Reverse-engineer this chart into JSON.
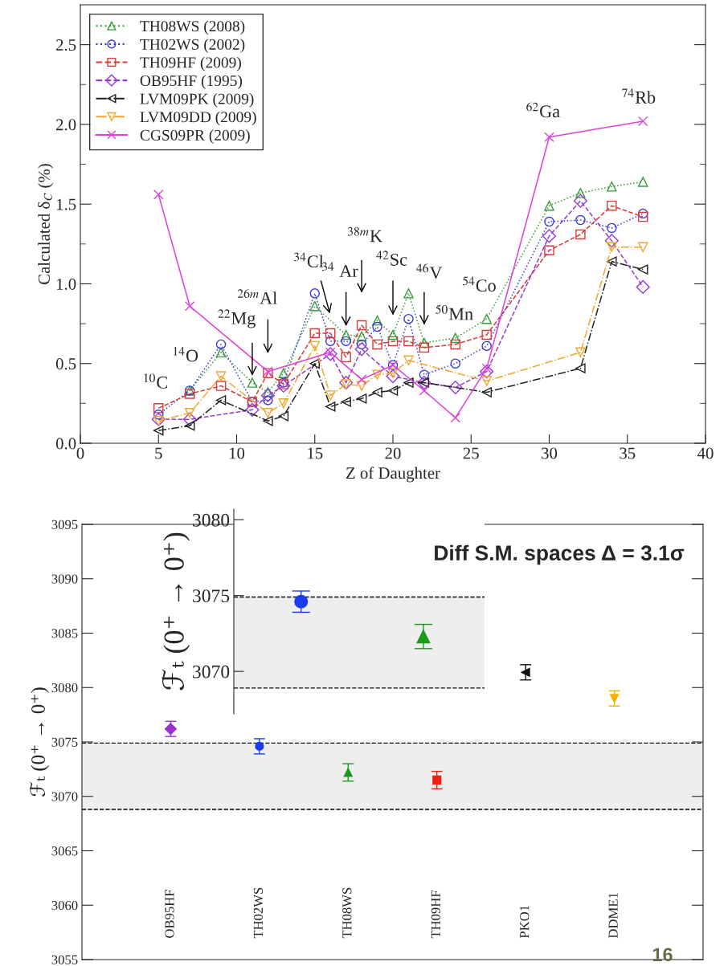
{
  "chart_data": [
    {
      "type": "line",
      "xlabel": "Z of Daughter",
      "ylabel": "Calculated δ$_{C}$ (%)",
      "xlim": [
        0,
        40
      ],
      "xticks": [
        0,
        5,
        10,
        15,
        20,
        25,
        30,
        35,
        40
      ],
      "ylim": [
        0,
        2.75
      ],
      "yticks": [
        {
          "value": 0,
          "label": "0.0"
        },
        {
          "value": 0.25,
          "label": null
        },
        {
          "value": 0.5,
          "label": "0.5"
        },
        {
          "value": 0.75,
          "label": null
        },
        {
          "value": 1.0,
          "label": "1.0"
        },
        {
          "value": 1.25,
          "label": null
        },
        {
          "value": 1.5,
          "label": "1.5"
        },
        {
          "value": 1.75,
          "label": null
        },
        {
          "value": 2.0,
          "label": "2.0"
        },
        {
          "value": 2.25,
          "label": null
        },
        {
          "value": 2.5,
          "label": "2.5"
        }
      ],
      "legend": "top left",
      "grid": false,
      "series": [
        {
          "name": "TH08WS (2008)",
          "color": "#3c9a3c",
          "marker": "triangle",
          "line_style": "dotted",
          "x": [
            7,
            9,
            11,
            12,
            13,
            15,
            17,
            18,
            19,
            20,
            21,
            22,
            24,
            26,
            30,
            32,
            34,
            36
          ],
          "values": [
            0.33,
            0.57,
            0.38,
            0.32,
            0.44,
            0.86,
            0.68,
            0.67,
            0.77,
            0.68,
            0.94,
            0.63,
            0.66,
            0.78,
            1.49,
            1.57,
            1.61,
            1.64
          ]
        },
        {
          "name": "TH02WS (2002)",
          "color": "#3a3ad8",
          "marker": "circle",
          "line_style": "dotted",
          "x": [
            5,
            7,
            9,
            11,
            12,
            13,
            15,
            16,
            17,
            18,
            19,
            20,
            21,
            22,
            24,
            26,
            30,
            32,
            34,
            36
          ],
          "values": [
            0.18,
            0.33,
            0.62,
            0.26,
            0.27,
            0.38,
            0.94,
            0.64,
            0.64,
            0.62,
            0.73,
            0.49,
            0.78,
            0.43,
            0.5,
            0.61,
            1.39,
            1.4,
            1.35,
            1.44
          ]
        },
        {
          "name": "TH09HF (2009)",
          "color": "#d83a3a",
          "marker": "square",
          "line_style": "dashed",
          "x": [
            5,
            7,
            9,
            11,
            12,
            13,
            15,
            16,
            17,
            18,
            19,
            20,
            21,
            22,
            24,
            26,
            30,
            32,
            34,
            36
          ],
          "values": [
            0.22,
            0.31,
            0.36,
            0.26,
            0.44,
            0.37,
            0.69,
            0.69,
            0.54,
            0.74,
            0.62,
            0.64,
            0.64,
            0.6,
            0.62,
            0.68,
            1.21,
            1.31,
            1.49,
            1.42
          ]
        },
        {
          "name": "OB95HF (1995)",
          "color": "#9a3ad0",
          "marker": "diamond",
          "line_style": "dashed",
          "x": [
            5,
            7,
            11,
            12,
            13,
            16,
            17,
            18,
            20,
            22,
            24,
            26,
            30,
            32,
            34,
            36
          ],
          "values": [
            0.15,
            0.15,
            0.21,
            0.3,
            0.36,
            0.56,
            0.38,
            0.59,
            0.42,
            0.38,
            0.35,
            0.45,
            1.3,
            1.52,
            1.27,
            0.98
          ]
        },
        {
          "name": "LVM09PK (2009)",
          "color": "#222222",
          "marker": "triangle-left",
          "line_style": "dashdot",
          "x": [
            5,
            7,
            9,
            12,
            13,
            15,
            16,
            17,
            18,
            19,
            20,
            21,
            22,
            26,
            32,
            34,
            36
          ],
          "values": [
            0.08,
            0.11,
            0.27,
            0.14,
            0.17,
            0.5,
            0.23,
            0.26,
            0.28,
            0.32,
            0.33,
            0.38,
            0.38,
            0.32,
            0.47,
            1.14,
            1.09
          ]
        },
        {
          "name": "LVM09DD (2009)",
          "color": "#f0a830",
          "marker": "triangle-down",
          "line_style": "dashdot",
          "x": [
            5,
            7,
            9,
            12,
            13,
            15,
            16,
            17,
            18,
            19,
            20,
            21,
            26,
            32,
            34,
            36
          ],
          "values": [
            0.14,
            0.19,
            0.42,
            0.19,
            0.25,
            0.61,
            0.3,
            0.37,
            0.36,
            0.43,
            0.44,
            0.52,
            0.39,
            0.57,
            1.23,
            1.23
          ]
        },
        {
          "name": "CGS09PR (2009)",
          "color": "#e040d8",
          "marker": "cross",
          "line_style": "solid",
          "x": [
            5,
            7,
            12,
            16,
            18,
            20,
            22,
            24,
            26,
            30,
            36
          ],
          "values": [
            1.56,
            0.86,
            0.45,
            0.57,
            0.4,
            0.49,
            0.33,
            0.16,
            0.47,
            1.92,
            2.02
          ]
        }
      ],
      "annotations": [
        "$^{10}$C",
        "$^{14}$O",
        "$^{22}$Mg",
        "$^{26m}$Al",
        "$^{34}$Cl",
        "$^{34}$ Ar",
        "$^{38m}$K",
        "$^{42}$Sc",
        "$^{46}$V",
        "$^{50}$Mn",
        "$^{54}$Co",
        "$^{62}$Ga",
        "$^{74}$Rb"
      ]
    },
    {
      "type": "scatter",
      "ylabel": "ℱₜ (0⁺ → 0⁺)",
      "categories": [
        "OB95HF",
        "TH02WS",
        "TH08WS",
        "TH09HF",
        "PKO1",
        "DDME1"
      ],
      "ylim": [
        3055,
        3095
      ],
      "yticks": [
        3055,
        3060,
        3065,
        3070,
        3075,
        3080,
        3085,
        3090,
        3095
      ],
      "grid": false,
      "bands": [
        {
          "axis": "y",
          "from": 3068.8,
          "to": 3074.9,
          "color": "#eeeeee"
        }
      ],
      "ref_lines": [
        {
          "axis": "y",
          "value": 3074.9,
          "line_style": "dashed"
        },
        {
          "axis": "y",
          "value": 3068.8,
          "line_style": "dashed"
        }
      ],
      "series": [
        {
          "color": "#9a30d0",
          "marker": "diamond",
          "values": [
            3076.2,
            null,
            null,
            null,
            null,
            null
          ],
          "errors": [
            0.7,
            null,
            null,
            null,
            null,
            null
          ]
        },
        {
          "color": "#1a3cf0",
          "marker": "circle",
          "values": [
            null,
            3074.6,
            null,
            null,
            null,
            null
          ],
          "errors": [
            null,
            0.7,
            null,
            null,
            null,
            null
          ]
        },
        {
          "color": "#1a9a1a",
          "marker": "triangle",
          "values": [
            null,
            null,
            3072.2,
            null,
            null,
            null
          ],
          "errors": [
            null,
            null,
            0.8,
            null,
            null,
            null
          ]
        },
        {
          "color": "#f02010",
          "marker": "square",
          "values": [
            null,
            null,
            null,
            3071.5,
            null,
            null
          ],
          "errors": [
            null,
            null,
            null,
            0.8,
            null,
            null
          ]
        },
        {
          "color": "#111111",
          "marker": "triangle-left",
          "values": [
            null,
            null,
            null,
            null,
            3081.4,
            null
          ],
          "errors": [
            null,
            null,
            null,
            null,
            0.7,
            null
          ]
        },
        {
          "color": "#f5b000",
          "marker": "triangle-down",
          "values": [
            null,
            null,
            null,
            null,
            null,
            3079.0
          ],
          "errors": [
            null,
            null,
            null,
            null,
            null,
            0.7
          ]
        }
      ],
      "annotations": [
        "Diff S.M. spaces Δ = 3.1σ",
        "16"
      ]
    },
    {
      "type": "scatter",
      "ylabel": "ℱₜ (0⁺ → 0⁺)",
      "categories": [
        null,
        null
      ],
      "tick_labels": "y",
      "ylim": [
        3067.2,
        3080.7
      ],
      "yticks": [
        3070,
        3075,
        3080
      ],
      "grid": false,
      "bands": [
        {
          "axis": "y",
          "from": 3068.9,
          "to": 3074.9,
          "color": "#eeeeee"
        }
      ],
      "ref_lines": [
        {
          "axis": "y",
          "value": 3074.9,
          "line_style": "dashed"
        },
        {
          "axis": "y",
          "value": 3068.9,
          "line_style": "dashed"
        }
      ],
      "series": [
        {
          "color": "#1a3cf0",
          "marker": "circle",
          "values": [
            3074.6,
            null
          ],
          "errors": [
            0.7,
            null
          ]
        },
        {
          "color": "#1a9a1a",
          "marker": "triangle",
          "values": [
            null,
            3072.3
          ],
          "errors": [
            null,
            0.8
          ]
        }
      ]
    }
  ]
}
